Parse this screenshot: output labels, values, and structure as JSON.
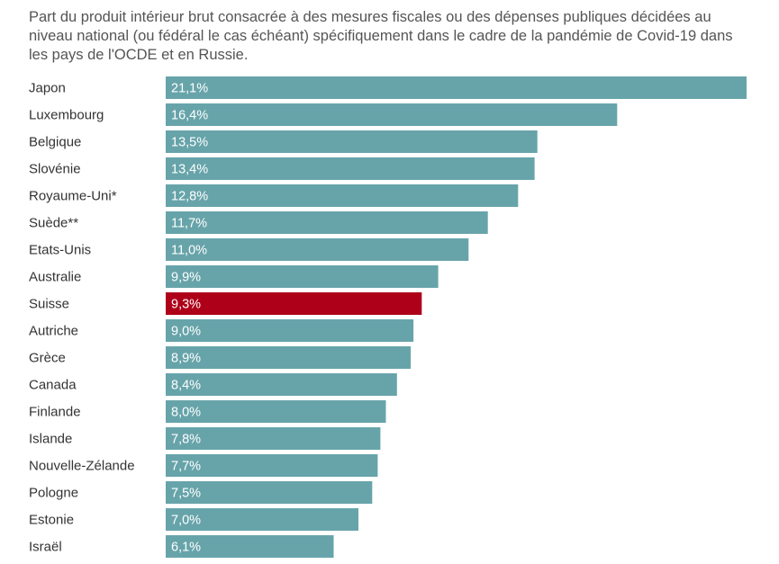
{
  "chart_data": {
    "type": "bar",
    "orientation": "horizontal",
    "title": "Part du produit intérieur brut consacrée à des mesures fiscales ou des dépenses publiques décidées au niveau national (ou fédéral le cas échéant) spécifiquement dans le cadre de la pandémie de Covid-19 dans les pays de l'OCDE et en Russie.",
    "xlabel": "",
    "ylabel": "",
    "xlim": [
      0,
      21.1
    ],
    "grid": false,
    "legend": "none",
    "categories": [
      "Japon",
      "Luxembourg",
      "Belgique",
      "Slovénie",
      "Royaume-Uni*",
      "Suède**",
      "Etats-Unis",
      "Australie",
      "Suisse",
      "Autriche",
      "Grèce",
      "Canada",
      "Finlande",
      "Islande",
      "Nouvelle-Zélande",
      "Pologne",
      "Estonie",
      "Israël"
    ],
    "values": [
      21.1,
      16.4,
      13.5,
      13.4,
      12.8,
      11.7,
      11.0,
      9.9,
      9.3,
      9.0,
      8.9,
      8.4,
      8.0,
      7.8,
      7.7,
      7.5,
      7.0,
      6.1
    ],
    "value_labels": [
      "21,1%",
      "16,4%",
      "13,5%",
      "13,4%",
      "12,8%",
      "11,7%",
      "11,0%",
      "9,9%",
      "9,3%",
      "9,0%",
      "8,9%",
      "8,4%",
      "8,0%",
      "7,8%",
      "7,7%",
      "7,5%",
      "7,0%",
      "6,1%"
    ],
    "highlight": "Suisse",
    "colors": {
      "bar": "#67a4aa",
      "highlight": "#ae0019",
      "value_text": "#ffffff",
      "label_text": "#333333"
    }
  }
}
